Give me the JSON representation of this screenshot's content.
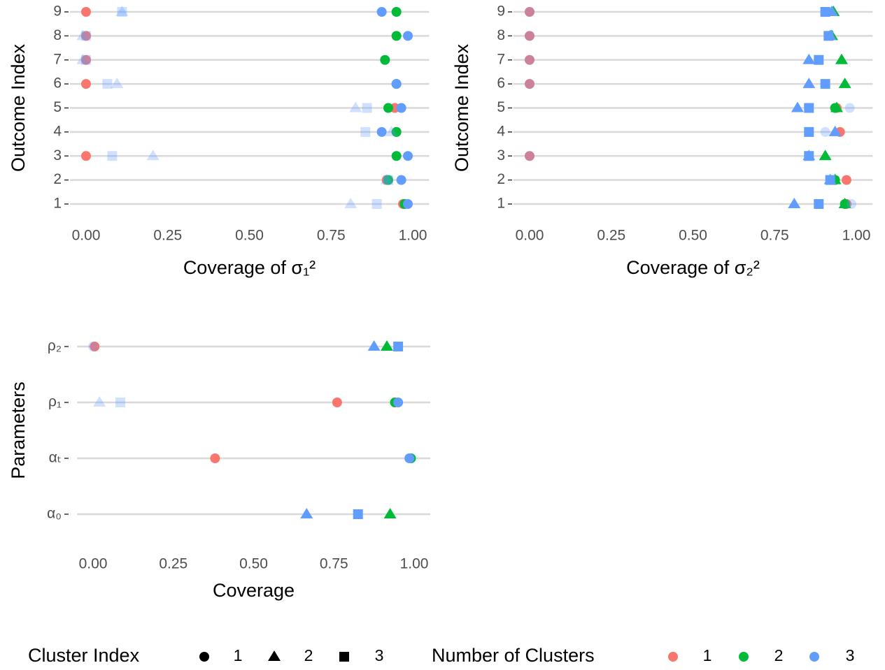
{
  "chart_data": [
    {
      "type": "scatter",
      "x_label": "Coverage of σ₁²",
      "y_label": "Outcome Index",
      "categories": [
        "1",
        "2",
        "3",
        "4",
        "5",
        "6",
        "7",
        "8",
        "9"
      ],
      "xlim": [
        -0.05,
        1.05
      ],
      "xticks": [
        {
          "value": 0,
          "label": "0.00"
        },
        {
          "value": 0.25,
          "label": "0.25"
        },
        {
          "value": 0.5,
          "label": "0.50"
        },
        {
          "value": 0.75,
          "label": "0.75"
        },
        {
          "value": 1,
          "label": "1.00"
        }
      ],
      "grid": true,
      "series": [
        {
          "color": "#F8766D",
          "shape": "circle",
          "values": [
            0.97,
            0.92,
            0.0,
            0.95,
            0.945,
            0.0,
            0.0,
            0.0,
            0.0
          ],
          "alpha": [
            1,
            1,
            1,
            1,
            1,
            1,
            1,
            1,
            1
          ]
        },
        {
          "color": "#00BA38",
          "shape": "circle",
          "values": [
            0.975,
            0.925,
            0.95,
            0.95,
            0.925,
            0.95,
            0.915,
            0.95,
            0.95
          ],
          "alpha": [
            1,
            1,
            1,
            1,
            1,
            1,
            1,
            1,
            1
          ]
        },
        {
          "color": "#619CFF",
          "shape": "circle",
          "values": [
            0.985,
            0.965,
            0.985,
            0.905,
            0.965,
            0.95,
            null,
            0.985,
            0.905
          ],
          "alpha": [
            1,
            1,
            1,
            1,
            1,
            1,
            1,
            1,
            1
          ]
        },
        {
          "color": "#619CFF",
          "shape": "triangle",
          "values": [
            0.81,
            0.92,
            0.205,
            0.935,
            0.825,
            0.095,
            -0.01,
            -0.01,
            0.11
          ],
          "alpha": [
            0.3,
            0.3,
            0.3,
            0.3,
            0.3,
            0.3,
            0.3,
            0.3,
            0.3
          ]
        },
        {
          "color": "#619CFF",
          "shape": "square",
          "values": [
            0.89,
            0.925,
            0.08,
            0.855,
            0.86,
            0.065,
            0.0,
            0.0,
            0.11
          ],
          "alpha": [
            0.3,
            0.3,
            0.3,
            0.3,
            0.3,
            0.3,
            0.3,
            0.3,
            0.3
          ]
        }
      ]
    },
    {
      "type": "scatter",
      "x_label": "Coverage of σ₂²",
      "y_label": "Outcome Index",
      "categories": [
        "1",
        "2",
        "3",
        "4",
        "5",
        "6",
        "7",
        "8",
        "9"
      ],
      "xlim": [
        -0.05,
        1.05
      ],
      "xticks": [
        {
          "value": 0,
          "label": "0.00"
        },
        {
          "value": 0.25,
          "label": "0.25"
        },
        {
          "value": 0.5,
          "label": "0.50"
        },
        {
          "value": 0.75,
          "label": "0.75"
        },
        {
          "value": 1,
          "label": "1.00"
        }
      ],
      "grid": true,
      "series": [
        {
          "color": "#F8766D",
          "shape": "circle",
          "values": [
            0.97,
            0.97,
            0.0,
            0.95,
            0.94,
            0.0,
            0.0,
            0.0,
            0.0
          ],
          "alpha": [
            1,
            1,
            1,
            1,
            1,
            1,
            1,
            1,
            1
          ]
        },
        {
          "color": "#00BA38",
          "shape": "circle",
          "values": [
            0.965,
            0.935,
            null,
            null,
            0.935,
            null,
            null,
            null,
            null
          ],
          "alpha": [
            1,
            1,
            1,
            1,
            1,
            1,
            1,
            1,
            1
          ]
        },
        {
          "color": "#00BA38",
          "shape": "triangle",
          "values": [
            0.965,
            0.935,
            0.905,
            null,
            0.94,
            0.965,
            0.955,
            0.925,
            0.93
          ],
          "alpha": [
            1,
            1,
            1,
            1,
            1,
            1,
            1,
            1,
            1
          ]
        },
        {
          "color": "#619CFF",
          "shape": "circle",
          "values": [
            0.985,
            0.92,
            0.0,
            0.905,
            0.98,
            0.0,
            0.0,
            0.0,
            0.0
          ],
          "alpha": [
            0.3,
            0.3,
            0.3,
            0.3,
            0.3,
            0.3,
            0.3,
            0.3,
            0.3
          ]
        },
        {
          "color": "#619CFF",
          "shape": "triangle",
          "values": [
            0.81,
            0.92,
            0.855,
            0.935,
            0.82,
            0.855,
            0.855,
            0.92,
            0.925
          ],
          "alpha": [
            1,
            1,
            1,
            1,
            1,
            1,
            1,
            1,
            1
          ]
        },
        {
          "color": "#619CFF",
          "shape": "square",
          "values": [
            0.885,
            0.92,
            0.855,
            0.855,
            0.855,
            0.905,
            0.885,
            0.915,
            0.905
          ],
          "alpha": [
            1,
            1,
            1,
            1,
            1,
            1,
            1,
            1,
            1
          ]
        }
      ]
    },
    {
      "type": "scatter",
      "x_label": "Coverage",
      "y_label": "Parameters",
      "categories": [
        "α₀",
        "αₜ",
        "ρ₁",
        "ρ₂"
      ],
      "xlim": [
        -0.05,
        1.05
      ],
      "xticks": [
        {
          "value": 0,
          "label": "0.00"
        },
        {
          "value": 0.25,
          "label": "0.25"
        },
        {
          "value": 0.5,
          "label": "0.50"
        },
        {
          "value": 0.75,
          "label": "0.75"
        },
        {
          "value": 1,
          "label": "1.00"
        }
      ],
      "grid": true,
      "series": [
        {
          "color": "#F8766D",
          "shape": "circle",
          "values": [
            null,
            0.38,
            0.76,
            0.005
          ],
          "alpha": [
            1,
            1,
            1,
            1
          ]
        },
        {
          "color": "#00BA38",
          "shape": "circle",
          "values": [
            null,
            0.99,
            0.94,
            null
          ],
          "alpha": [
            1,
            1,
            1,
            1
          ]
        },
        {
          "color": "#00BA38",
          "shape": "triangle",
          "values": [
            0.925,
            null,
            null,
            0.915
          ],
          "alpha": [
            1,
            1,
            1,
            1
          ]
        },
        {
          "color": "#619CFF",
          "shape": "circle",
          "values": [
            null,
            0.985,
            0.95,
            0.0
          ],
          "alpha": [
            1,
            1,
            1,
            0.3
          ]
        },
        {
          "color": "#619CFF",
          "shape": "triangle",
          "values": [
            0.665,
            null,
            0.02,
            0.875
          ],
          "alpha": [
            1,
            1,
            0.3,
            1
          ]
        },
        {
          "color": "#619CFF",
          "shape": "square",
          "values": [
            0.825,
            null,
            0.085,
            0.95
          ],
          "alpha": [
            1,
            1,
            0.3,
            1
          ]
        }
      ]
    }
  ],
  "legend": {
    "shape_title": "Cluster Index",
    "shape_entries": [
      "1",
      "2",
      "3"
    ],
    "shapes": [
      "circle",
      "triangle",
      "square"
    ],
    "color_title": "Number of Clusters",
    "color_entries": [
      "1",
      "2",
      "3"
    ],
    "colors": [
      "#F8766D",
      "#00BA38",
      "#619CFF"
    ],
    "position": "bottom"
  }
}
